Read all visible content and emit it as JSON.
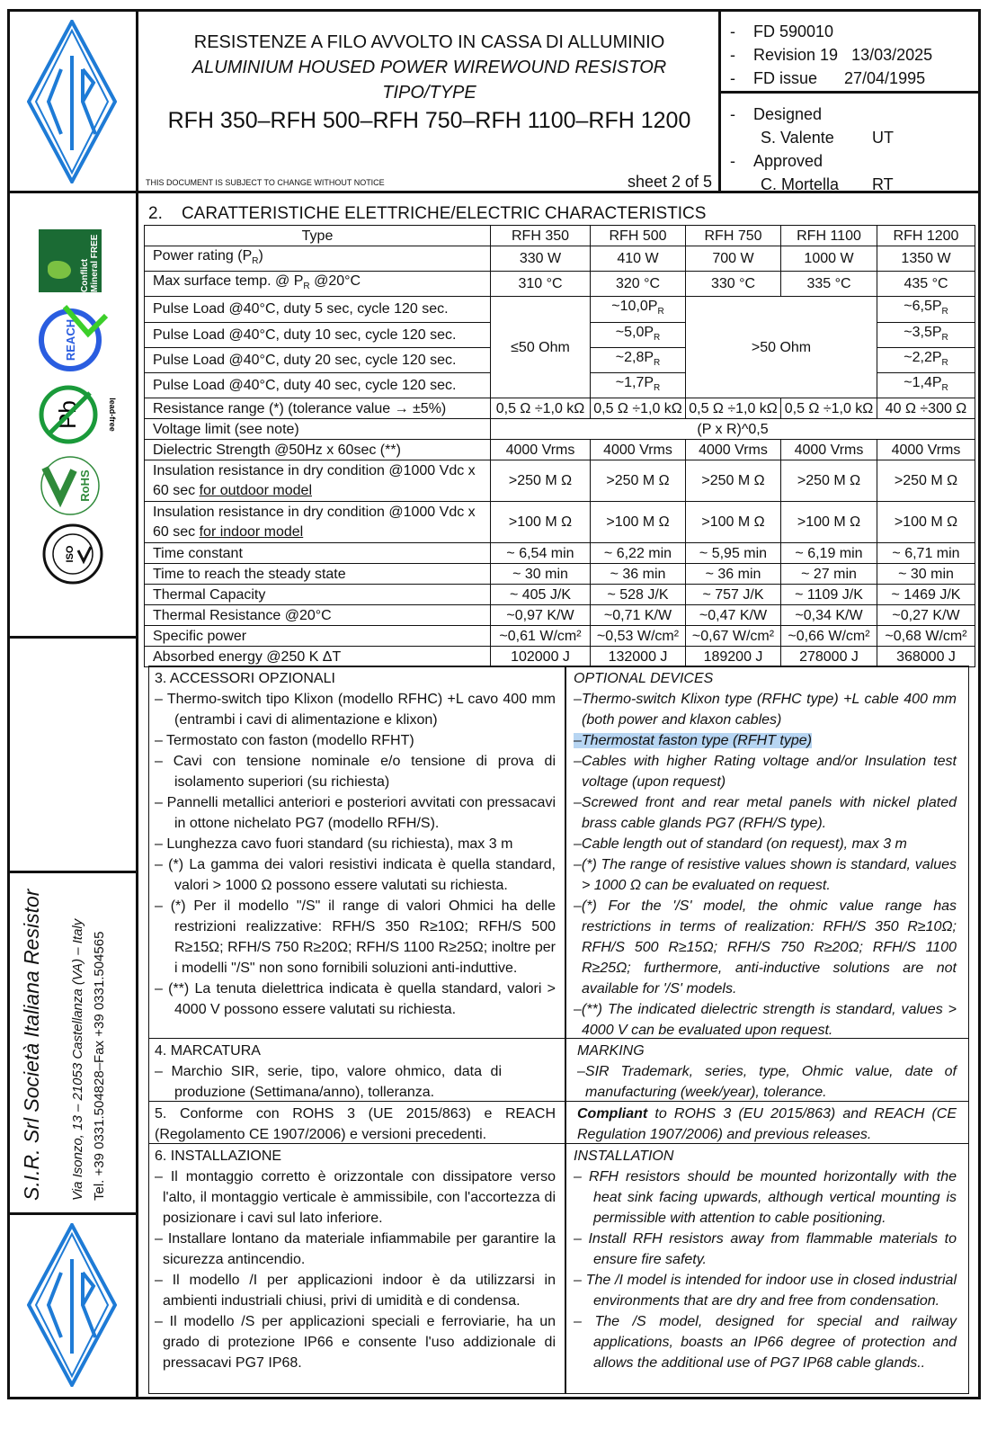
{
  "header": {
    "title_it": "RESISTENZE A FILO AVVOLTO IN CASSA DI ALLUMINIO",
    "title_en": "ALUMINIUM HOUSED POWER WIREWOUND RESISTOR",
    "tipo": "TIPO/TYPE",
    "models": "RFH 350–RFH 500–RFH 750–RFH 1100–RFH 1200",
    "notice": "THIS DOCUMENT IS SUBJECT TO CHANGE WITHOUT NOTICE",
    "sheet": "sheet 2 of 5",
    "fd": "FD 590010",
    "revision_label": "Revision 19",
    "revision_date": "13/03/2025",
    "issue_label": "FD issue",
    "issue_date": "27/04/1995",
    "designed_label": "Designed",
    "designer": "S. Valente",
    "designer_init": "UT",
    "approved_label": "Approved",
    "approver": "C. Mortella",
    "approver_init": "RT"
  },
  "sidebar": {
    "logos": [
      "Conflict Mineral FREE",
      "REACH COMPLIANT",
      "Pb lead-free",
      "RoHS COMPLIANT",
      "ISO 9001:2015 REGISTERED COMPANY"
    ],
    "company": "S.I.R. Srl Società Italiana Resistor",
    "address": "Via Isonzo, 13 – 21053 Castellanza (VA) – Italy",
    "phone": "Tel. +39 0331.504828–Fax +39 0331.504565",
    "logo_text": "SIR",
    "brand_color": "#1e7bd6"
  },
  "section2": {
    "title": "2.    CARATTERISTICHE ELETTRICHE/ELECTRIC CHARACTERISTICS",
    "header": [
      "Type",
      "RFH 350",
      "RFH 500",
      "RFH 750",
      "RFH 1100",
      "RFH 1200"
    ],
    "power": {
      "label": "Power rating (P",
      "label_sub": "R",
      "label_end": ")",
      "values": [
        "330 W",
        "410 W",
        "700 W",
        "1000 W",
        "1350 W"
      ]
    },
    "temp": {
      "label": "Max surface temp. @ P",
      "label_sub": "R",
      "label_end": " @20°C",
      "values": [
        "310 °C",
        "320 °C",
        "330 °C",
        "335 °C",
        "435 °C"
      ]
    },
    "pulse": {
      "labels": [
        "Pulse Load  @40°C, duty 5 sec, cycle 120 sec.",
        "Pulse Load  @40°C, duty 10 sec, cycle 120 sec.",
        "Pulse Load  @40°C, duty 20 sec, cycle 120 sec.",
        "Pulse Load  @40°C, duty 40 sec, cycle 120 sec."
      ],
      "low_range": "≤50 Ohm",
      "high_range": ">50 Ohm",
      "low_values": [
        "~10,0P",
        "~5,0P",
        "~2,8P",
        "~1,7P"
      ],
      "high_values": [
        "~6,5P",
        "~3,5P",
        "~2,2P",
        "~1,4P"
      ],
      "sub": "R"
    },
    "rows": [
      {
        "label": "Resistance range (*)    (tolerance value → ±5%)",
        "values": [
          "0,5 Ω ÷1,0 kΩ",
          "0,5 Ω ÷1,0 kΩ",
          "0,5 Ω ÷1,0 kΩ",
          "0,5 Ω ÷1,0 kΩ",
          "40 Ω ÷300 Ω"
        ]
      },
      {
        "label": "Voltage limit (see note)",
        "span": "(P x R)^0,5"
      },
      {
        "label": "Dielectric Strength @50Hz x 60sec (**)",
        "values": [
          "4000 Vrms",
          "4000 Vrms",
          "4000 Vrms",
          "4000 Vrms",
          "4000 Vrms"
        ]
      },
      {
        "label": "Insulation resistance in dry condition @1000 Vdc x 60 sec ",
        "label_u": "for outdoor model",
        "values": [
          ">250 M Ω",
          ">250 M Ω",
          ">250 M Ω",
          ">250 M Ω",
          ">250 M Ω"
        ]
      },
      {
        "label": "Insulation resistance in dry condition @1000 Vdc x 60 sec ",
        "label_u": "for indoor model",
        "values": [
          ">100 M Ω",
          ">100 M Ω",
          ">100 M Ω",
          ">100 M Ω",
          ">100 M Ω"
        ]
      },
      {
        "label": "Time constant",
        "values": [
          "~ 6,54 min",
          "~ 6,22 min",
          "~ 5,95 min",
          "~ 6,19 min",
          "~ 6,71 min"
        ]
      },
      {
        "label": "Time to reach the steady state",
        "values": [
          "~ 30 min",
          "~ 36 min",
          "~ 36 min",
          "~ 27 min",
          "~ 30 min"
        ]
      },
      {
        "label": "Thermal Capacity",
        "values": [
          "~ 405 J/K",
          "~ 528 J/K",
          "~ 757 J/K",
          "~ 1109 J/K",
          "~ 1469 J/K"
        ]
      },
      {
        "label": "Thermal Resistance @20°C",
        "values": [
          "~0,97 K/W",
          "~0,71 K/W",
          "~0,47 K/W",
          "~0,34 K/W",
          "~0,27 K/W"
        ]
      },
      {
        "label": "Specific power",
        "values": [
          "~0,61 W/cm²",
          "~0,53 W/cm²",
          "~0,67 W/cm²",
          "~0,66 W/cm²",
          "~0,68 W/cm²"
        ]
      },
      {
        "label": "Absorbed energy @250 K ΔT",
        "values": [
          "102000 J",
          "132000 J",
          "189200 J",
          "278000 J",
          "368000 J"
        ]
      }
    ]
  },
  "accessories": {
    "it_title": "3. ACCESSORI OPZIONALI",
    "it_items": [
      "–   Thermo-switch tipo Klixon (modello RFHC) +L cavo 400 mm (entrambi i cavi di alimentazione e klixon)",
      "–   Termostato con faston (modello RFHT)",
      "–   Cavi con tensione nominale e/o tensione di prova di isolamento superiori (su richiesta)",
      "–   Pannelli metallici anteriori e posteriori avvitati con pressacavi in ottone nichelato PG7 (modello RFH/S).",
      "–   Lunghezza cavo fuori standard (su richiesta), max 3 m",
      "–   (*) La gamma dei valori resistivi indicata è quella standard, valori > 1000 Ω possono essere valutati su richiesta.",
      "–   (*) Per il modello \"/S\" il range di valori Ohmici ha delle restrizioni realizzative: RFH/S 350 R≥10Ω; RFH/S 500 R≥15Ω; RFH/S 750 R≥20Ω; RFH/S 1100 R≥25Ω; inoltre per i modelli \"/S\" non sono fornibili soluzioni anti-induttive.",
      "–   (**) La tenuta dielettrica indicata è quella standard, valori > 4000 V possono essere valutati su richiesta."
    ],
    "en_title": "OPTIONAL DEVICES",
    "en_items": [
      "–Thermo-switch Klixon type (RFHC type) +L cable 400 mm (both power and klaxon cables)",
      "–Thermostat faston type (RFHT type)",
      "–Cables with higher Rating voltage and/or Insulation test voltage (upon request)",
      "–Screwed front and rear metal panels with nickel plated brass cable glands PG7 (RFH/S type).",
      "–Cable length out of standard (on request), max 3 m",
      "–(*) The range of resistive values shown is standard, values > 1000 Ω can be evaluated on request.",
      "–(*) For the '/S' model, the ohmic value range has restrictions in terms of realization: RFH/S 350 R≥10Ω; RFH/S 500 R≥15Ω; RFH/S 750 R≥20Ω; RFH/S 1100 R≥25Ω; furthermore, anti-inductive solutions are not available for '/S' models.",
      "–(**) The indicated dielectric strength is standard, values > 4000 V can be evaluated upon request."
    ],
    "highlight_color": "#b7d5f2"
  },
  "marking": {
    "it_title": "4. MARCATURA",
    "it_text": "–   Marchio SIR, serie, tipo, valore ohmico,  data di produzione (Settimana/anno), tolleranza.",
    "en_title": "MARKING",
    "en_text": "–SIR Trademark, series, type, Ohmic value, date of manufacturing (week/year), tolerance."
  },
  "conformity": {
    "it_bold": "5. Conforme",
    "it_text": " con ROHS 3 (UE 2015/863) e REACH (Regolamento CE 1907/2006) e versioni precedenti.",
    "en_bold": "Compliant",
    "en_text": " to ROHS 3 (EU 2015/863) and REACH (CE Regulation 1907/2006) and previous releases."
  },
  "installation": {
    "it_title": "6. INSTALLAZIONE",
    "it_items": [
      "– Il montaggio corretto è orizzontale con dissipatore verso l'alto, il montaggio verticale è ammissibile, con l'accortezza di posizionare i cavi sul lato inferiore.",
      "– Installare lontano da materiale infiammabile per garantire la sicurezza antincendio.",
      "– Il modello /I per applicazioni indoor è da utilizzarsi in ambienti industriali chiusi, privi  di umidità e di condensa.",
      "– Il modello /S per applicazioni speciali e ferroviarie, ha un grado di protezione IP66 e consente l'uso addizionale di pressacavi PG7 IP68."
    ],
    "en_title": "INSTALLATION",
    "en_items": [
      "–  RFH resistors should be mounted horizontally with the heat sink facing upwards, although vertical mounting is permissible with attention to cable positioning.",
      "–  Install RFH resistors away from flammable materials to ensure fire safety.",
      "–  The /I model is intended for indoor use in closed industrial environments that are dry and free from condensation.",
      "–  The /S model, designed for special and railway applications, boasts an IP66 degree of protection and allows the additional use of PG7 IP68 cable glands.."
    ]
  }
}
